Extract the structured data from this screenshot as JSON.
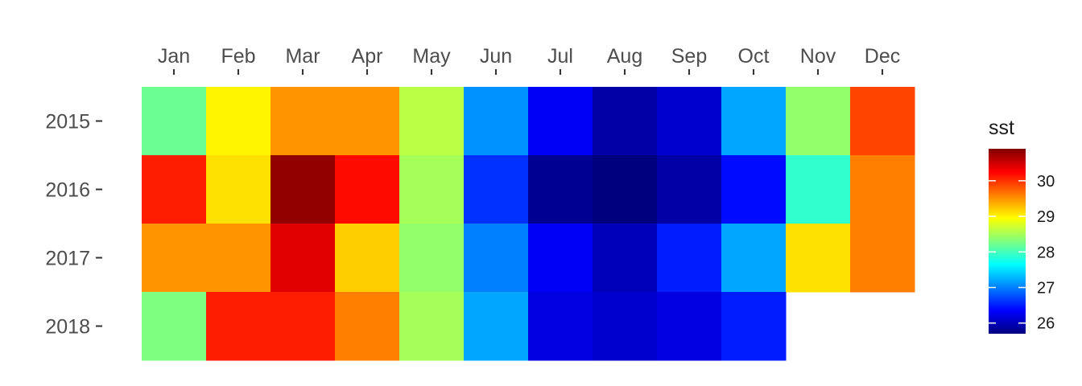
{
  "chart_data": {
    "type": "heatmap",
    "title": "",
    "xlabel": "",
    "ylabel": "",
    "x": [
      "Jan",
      "Feb",
      "Mar",
      "Apr",
      "May",
      "Jun",
      "Jul",
      "Aug",
      "Sep",
      "Oct",
      "Nov",
      "Dec"
    ],
    "y": [
      "2015",
      "2016",
      "2017",
      "2018"
    ],
    "values": [
      [
        28.2,
        29.0,
        29.5,
        29.5,
        28.6,
        27.1,
        26.3,
        25.9,
        26.1,
        27.2,
        28.4,
        29.9
      ],
      [
        30.1,
        29.1,
        30.8,
        30.2,
        28.5,
        26.6,
        25.8,
        25.7,
        25.9,
        26.4,
        27.9,
        29.6
      ],
      [
        29.5,
        29.5,
        30.4,
        29.2,
        28.4,
        27.0,
        26.3,
        26.0,
        26.5,
        27.2,
        29.1,
        29.6
      ],
      [
        28.3,
        30.1,
        30.1,
        29.6,
        28.5,
        27.2,
        26.2,
        26.1,
        26.2,
        26.5,
        null,
        null
      ]
    ],
    "legend": {
      "title": "sst",
      "min": 25.7,
      "max": 30.9,
      "ticks": [
        26,
        27,
        28,
        29,
        30
      ],
      "position": "right"
    },
    "grid": false,
    "colors": [
      "#00007f",
      "#0000ff",
      "#007fff",
      "#00ffff",
      "#7fff7f",
      "#ffff00",
      "#ff7f00",
      "#ff0000",
      "#7f0000"
    ]
  }
}
